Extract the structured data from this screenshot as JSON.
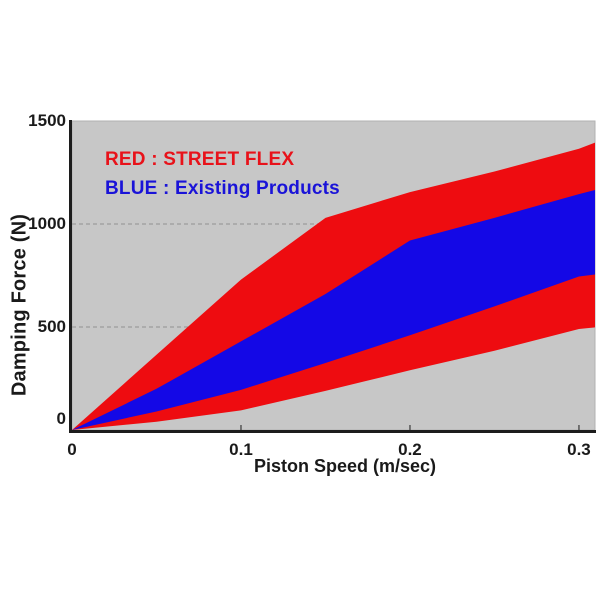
{
  "chart_data": {
    "type": "area",
    "title": "",
    "xlabel": "Piston Speed (m/sec)",
    "ylabel": "Damping Force (N)",
    "xlim": [
      0,
      0.3095
    ],
    "ylim": [
      0,
      1500
    ],
    "x_ticks": [
      {
        "label": "0",
        "value": 0
      },
      {
        "label": "0.1",
        "value": 0.1
      },
      {
        "label": "0.2",
        "value": 0.2
      },
      {
        "label": "0.3",
        "value": 0.3
      }
    ],
    "y_ticks": [
      {
        "label": "0",
        "value": 0
      },
      {
        "label": "500",
        "value": 500
      },
      {
        "label": "1000",
        "value": 1000
      },
      {
        "label": "1500",
        "value": 1500
      }
    ],
    "grid": {
      "y_values": [
        500,
        1000
      ],
      "style": "dashed",
      "color": "#9c9c9c"
    },
    "plot_bg_color": "#c7c7c7",
    "axis_color": "#1c1c1c",
    "border_color": "#b2b2b2",
    "legend": [
      {
        "label": "RED : STREET FLEX",
        "color": "#e8121a"
      },
      {
        "label": "BLUE : Existing Products",
        "color": "#1a13d8"
      }
    ],
    "speeds": [
      0,
      0.05,
      0.1,
      0.15,
      0.2,
      0.25,
      0.3,
      0.3095
    ],
    "bands": [
      {
        "name": "STREET FLEX (red band)",
        "color": "#ee0c10",
        "upper": [
          0,
          365,
          730,
          1030,
          1155,
          1255,
          1365,
          1395
        ],
        "lower": [
          0,
          40,
          95,
          190,
          290,
          385,
          490,
          498
        ]
      },
      {
        "name": "Existing Products (blue band)",
        "color": "#1408e6",
        "upper": [
          0,
          200,
          430,
          660,
          920,
          1030,
          1145,
          1165
        ],
        "lower": [
          0,
          90,
          195,
          325,
          460,
          600,
          745,
          755
        ]
      }
    ]
  }
}
